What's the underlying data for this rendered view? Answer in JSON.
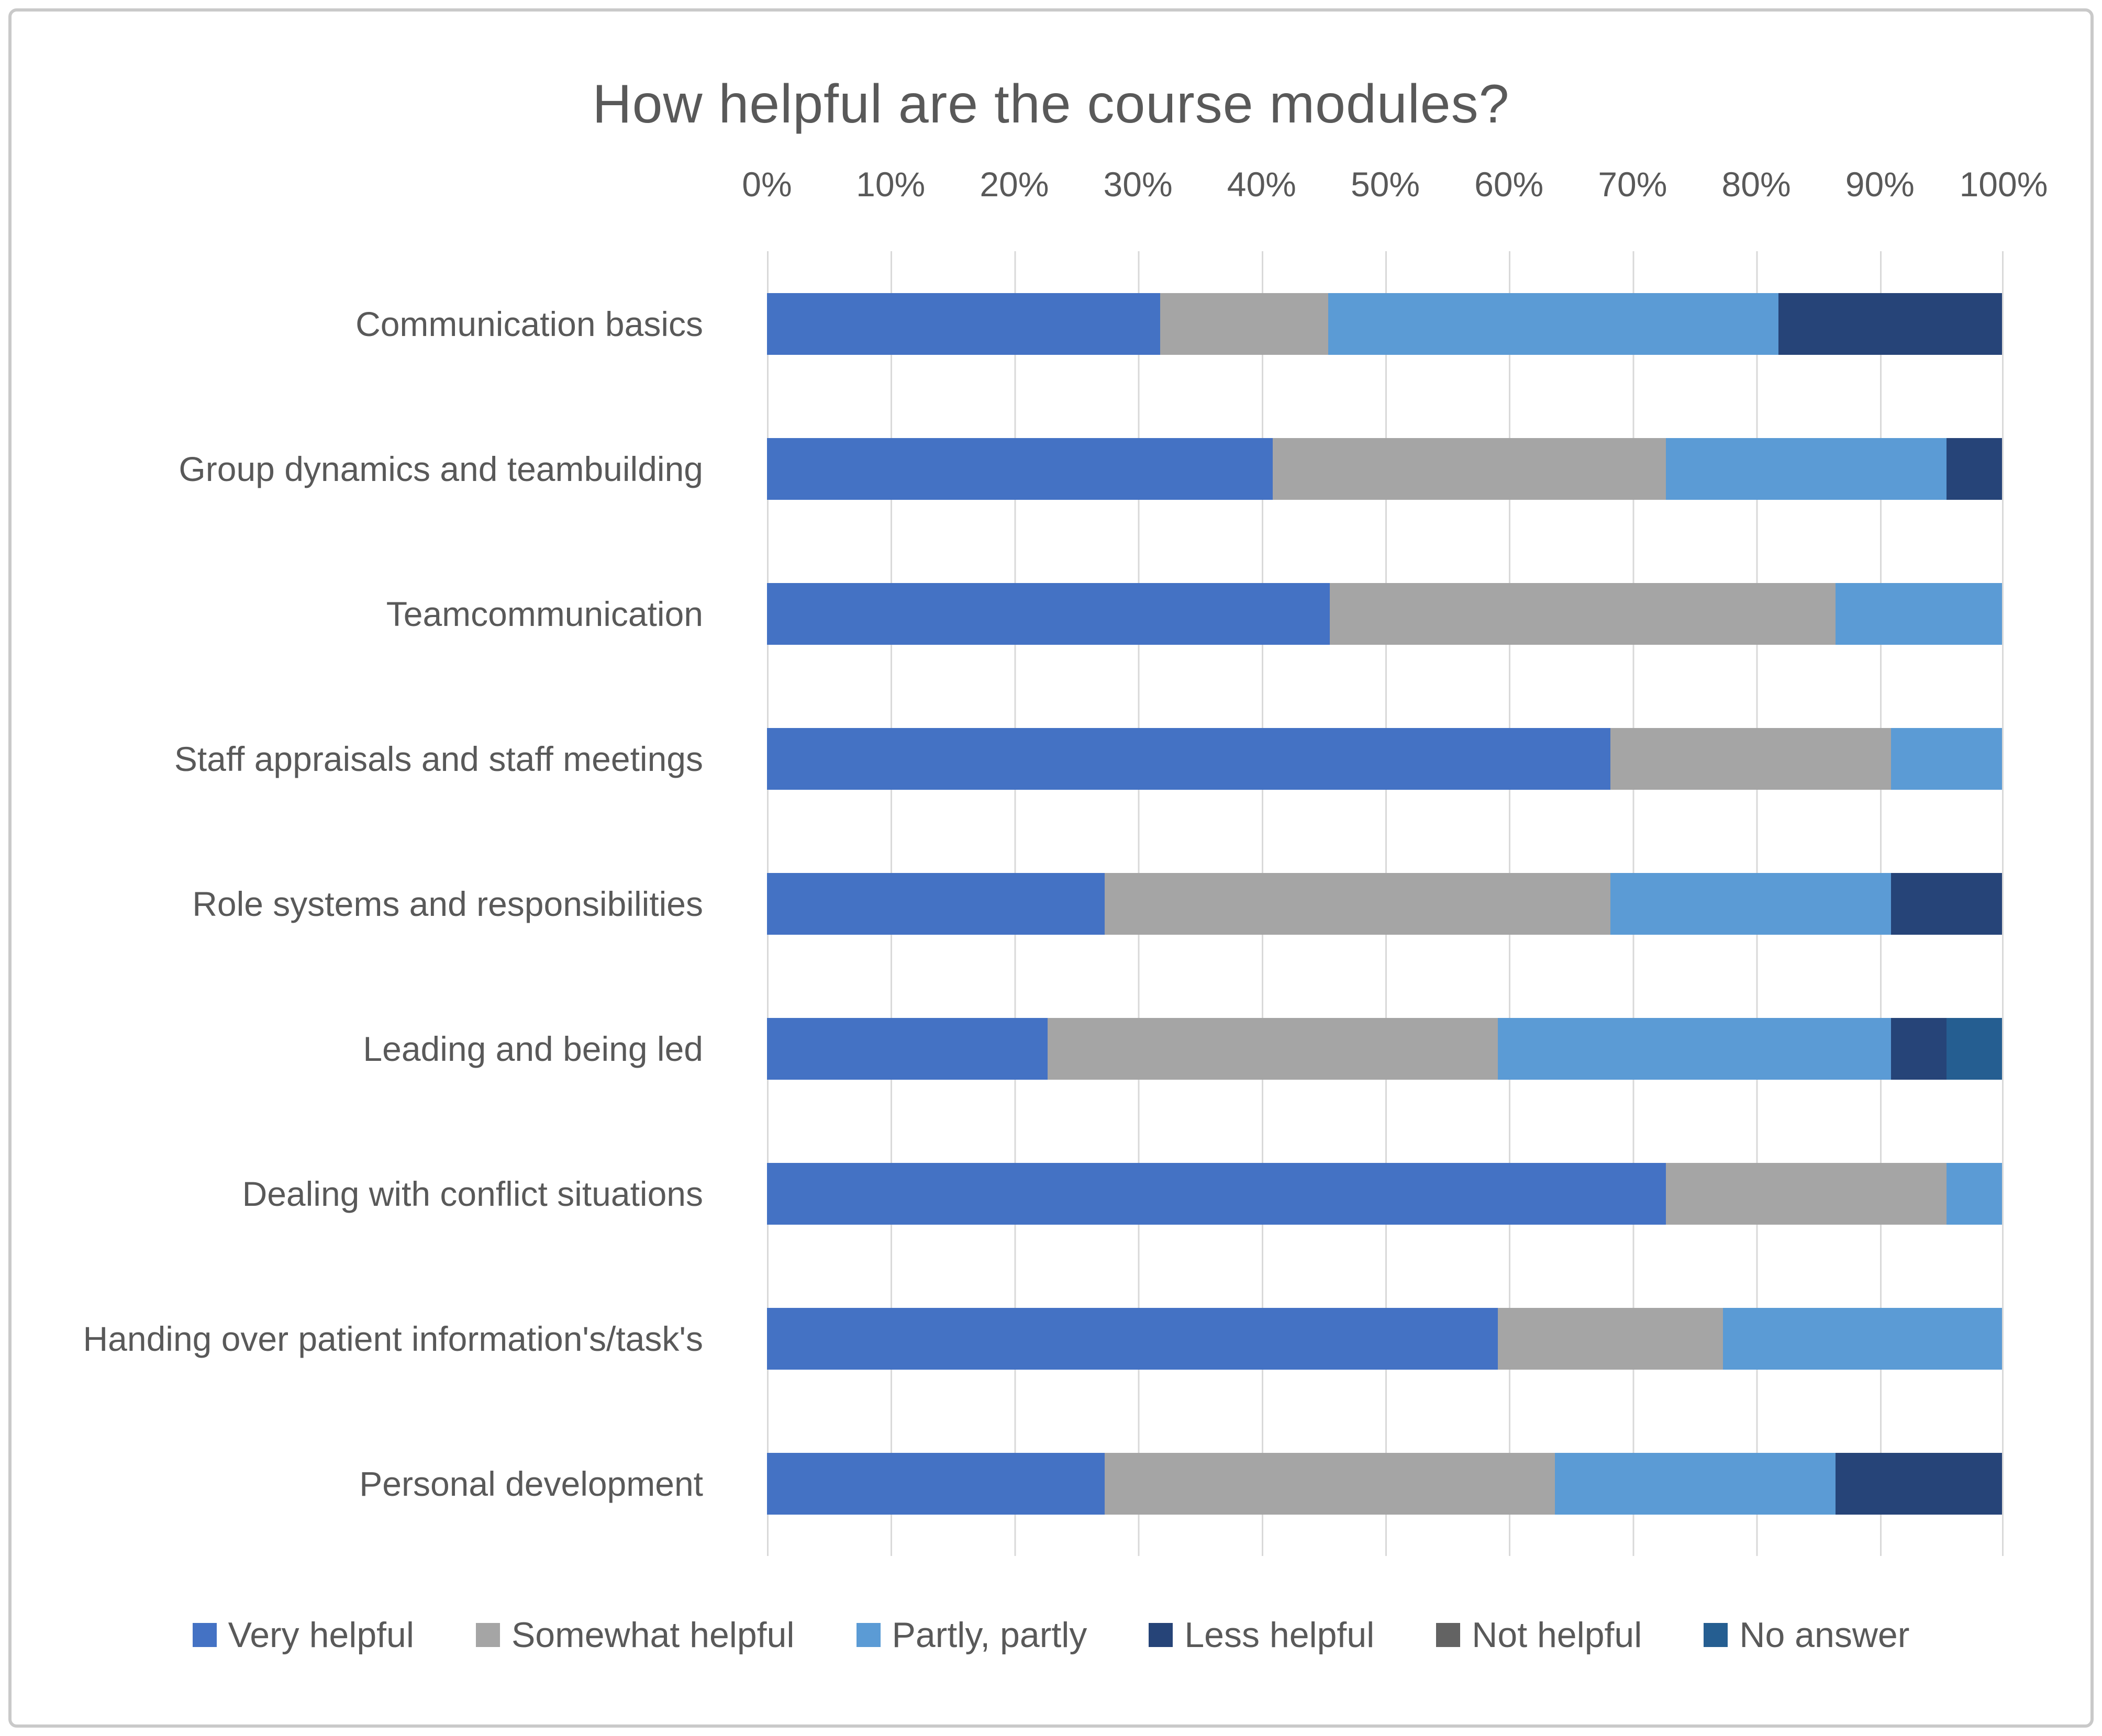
{
  "chart_data": {
    "type": "bar",
    "stacked": true,
    "orientation": "horizontal",
    "title": "How helpful are the course modules?",
    "xlabel": "",
    "ylabel": "",
    "x_axis": {
      "min": 0,
      "max": 100,
      "tick_step": 10,
      "tick_labels": [
        "0%",
        "10%",
        "20%",
        "30%",
        "40%",
        "50%",
        "60%",
        "70%",
        "80%",
        "90%",
        "100%"
      ],
      "position": "top"
    },
    "grid": true,
    "grid_color": "#D9D9D9",
    "text_color": "#595959",
    "legend_position": "bottom",
    "categories": [
      "Communication basics",
      "Group dynamics and teambuilding",
      "Teamcommunication",
      "Staff appraisals and staff meetings",
      "Role systems and responsibilities",
      "Leading and being led",
      "Dealing with conflict situations",
      "Handing over patient information's/task's",
      "Personal development"
    ],
    "series": [
      {
        "name": "Very helpful",
        "color": "#4472C4",
        "values": [
          31.8,
          40.9,
          45.5,
          68.2,
          27.3,
          22.7,
          72.7,
          59.1,
          27.3
        ]
      },
      {
        "name": "Somewhat helpful",
        "color": "#A5A5A5",
        "values": [
          13.6,
          31.8,
          40.9,
          22.7,
          40.9,
          36.4,
          22.7,
          18.2,
          36.4
        ]
      },
      {
        "name": "Partly, partly",
        "color": "#5B9BD5",
        "values": [
          36.4,
          22.7,
          13.6,
          9.1,
          22.7,
          31.8,
          4.5,
          22.7,
          22.7
        ]
      },
      {
        "name": "Less helpful",
        "color": "#264478",
        "values": [
          18.2,
          4.6,
          0,
          0,
          9.1,
          4.5,
          0,
          0,
          13.6
        ]
      },
      {
        "name": "Not helpful",
        "color": "#636363",
        "values": [
          0,
          0,
          0,
          0,
          0,
          0,
          0,
          0,
          0
        ]
      },
      {
        "name": "No answer",
        "color": "#255E91",
        "values": [
          0,
          0,
          0,
          0,
          0,
          4.6,
          0.1,
          0,
          0
        ]
      }
    ]
  }
}
